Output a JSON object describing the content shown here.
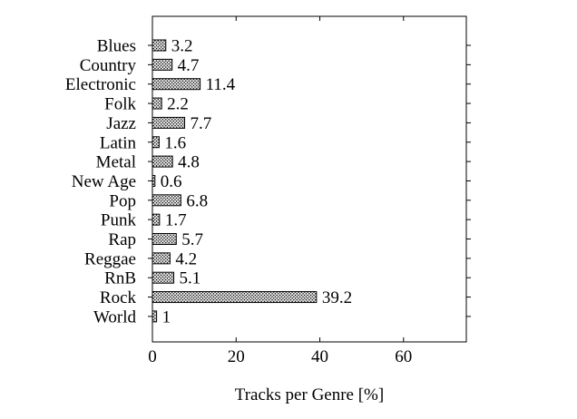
{
  "chart_data": {
    "type": "bar",
    "orientation": "horizontal",
    "categories": [
      "Blues",
      "Country",
      "Electronic",
      "Folk",
      "Jazz",
      "Latin",
      "Metal",
      "New Age",
      "Pop",
      "Punk",
      "Rap",
      "Reggae",
      "RnB",
      "Rock",
      "World"
    ],
    "values": [
      3.2,
      4.7,
      11.4,
      2.2,
      7.7,
      1.6,
      4.8,
      0.6,
      6.8,
      1.7,
      5.7,
      4.2,
      5.1,
      39.2,
      1
    ],
    "value_labels": [
      "3.2",
      "4.7",
      "11.4",
      "2.2",
      "7.7",
      "1.6",
      "4.8",
      "0.6",
      "6.8",
      "1.7",
      "5.7",
      "4.2",
      "5.1",
      "39.2",
      "1"
    ],
    "xlabel": "Tracks per Genre [%]",
    "ylabel": "",
    "xlim": [
      0,
      75
    ],
    "xticks": [
      0,
      20,
      40,
      60
    ],
    "grid": false,
    "bar_fill": "crosshatch-dots",
    "colors": {
      "bar_stroke": "#000000",
      "pattern": "#000000"
    }
  }
}
